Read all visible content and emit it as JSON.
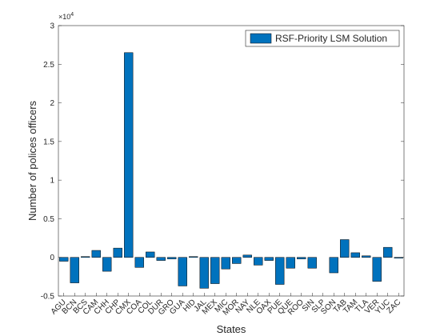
{
  "chart_data": {
    "type": "bar",
    "xlabel": "States",
    "ylabel": "Number of polices officers",
    "y_multiplier_base": "×10",
    "y_multiplier_power": 4,
    "legend_location": "northeast",
    "categories": [
      "AGU",
      "BCN",
      "BCS",
      "CAM",
      "CHH",
      "CHP",
      "CMX",
      "COA",
      "COL",
      "DUR",
      "GRO",
      "GUA",
      "HID",
      "JAL",
      "MEX",
      "MIC",
      "MOR",
      "NAY",
      "NLE",
      "OAX",
      "PUE",
      "QUE",
      "ROO",
      "SIN",
      "SLP",
      "SON",
      "TAB",
      "TAM",
      "TLA",
      "VER",
      "YUC",
      "ZAC"
    ],
    "series": [
      {
        "name": "RSF-Priority LSM Solution",
        "color": "#0072bd",
        "values": [
          -0.05,
          -0.33,
          0.01,
          0.09,
          -0.18,
          0.12,
          2.65,
          -0.13,
          0.07,
          -0.04,
          -0.02,
          -0.37,
          0.01,
          -0.4,
          -0.34,
          -0.15,
          -0.08,
          0.03,
          -0.1,
          -0.04,
          -0.35,
          -0.14,
          -0.02,
          -0.14,
          0,
          -0.2,
          0.23,
          0.06,
          0.02,
          -0.31,
          0.13,
          -0.01
        ]
      }
    ],
    "ylim": [
      -0.5,
      3
    ],
    "yticks": [
      -0.5,
      0,
      0.5,
      1,
      1.5,
      2,
      2.5,
      3
    ]
  }
}
